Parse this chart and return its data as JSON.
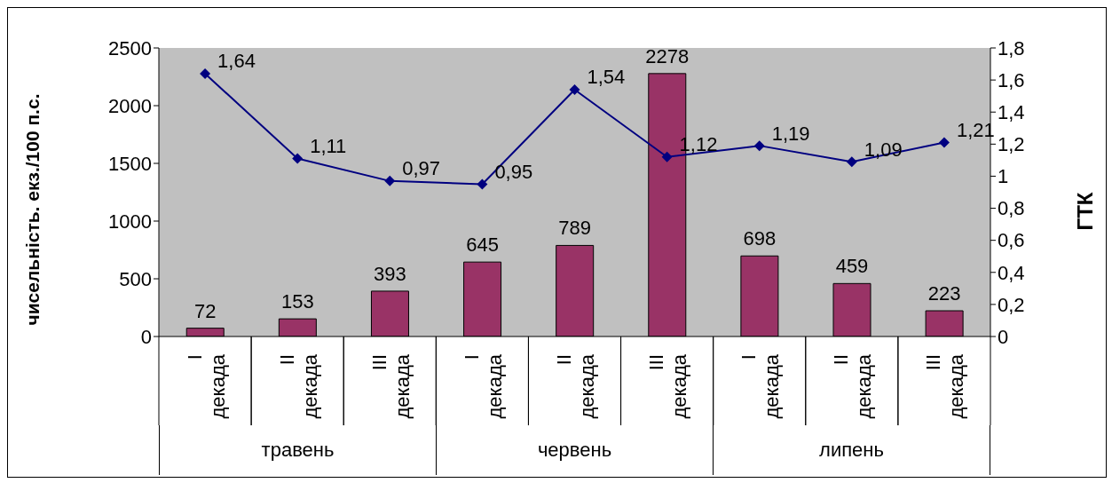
{
  "chart_data": {
    "type": "bar",
    "categories": [
      "I декада",
      "II декада",
      "III декада",
      "I декада",
      "II декада",
      "III декада",
      "I декада",
      "II декада",
      "III декада"
    ],
    "series": [
      {
        "color": "#993366",
        "values": [
          72,
          153,
          393,
          645,
          789,
          2278,
          698,
          459,
          223
        ],
        "value_labels": [
          "72",
          "153",
          "393",
          "645",
          "789",
          "2278",
          "698",
          "459",
          "223"
        ]
      },
      {
        "type": "line",
        "axis": "y2",
        "color": "#000080",
        "marker": "diamond",
        "values": [
          1.64,
          1.11,
          0.97,
          0.95,
          1.54,
          1.12,
          1.19,
          1.09,
          1.21
        ],
        "value_labels": [
          "1,64",
          "1,11",
          "0,97",
          "0,95",
          "1,54",
          "1,12",
          "1,19",
          "1,09",
          "1,21"
        ]
      }
    ],
    "ylabel": "чисельність. екз./100 п.с.",
    "y2label": "ГТК",
    "ylim": [
      0,
      2500
    ],
    "yticks": [
      0,
      500,
      1000,
      1500,
      2000,
      2500
    ],
    "y2lim": [
      0,
      1.8
    ],
    "y2ticks": [
      0,
      {
        "value": 0.2,
        "label": "0,2"
      },
      {
        "value": 0.4,
        "label": "0,4"
      },
      {
        "value": 0.6,
        "label": "0,6"
      },
      {
        "value": 0.8,
        "label": "0,8"
      },
      1,
      {
        "value": 1.2,
        "label": "1,2"
      },
      {
        "value": 1.4,
        "label": "1,4"
      },
      {
        "value": 1.6,
        "label": "1,6"
      },
      {
        "value": 1.8,
        "label": "1,8"
      }
    ],
    "annotations": [
      "травень",
      "червень",
      "липень"
    ]
  }
}
